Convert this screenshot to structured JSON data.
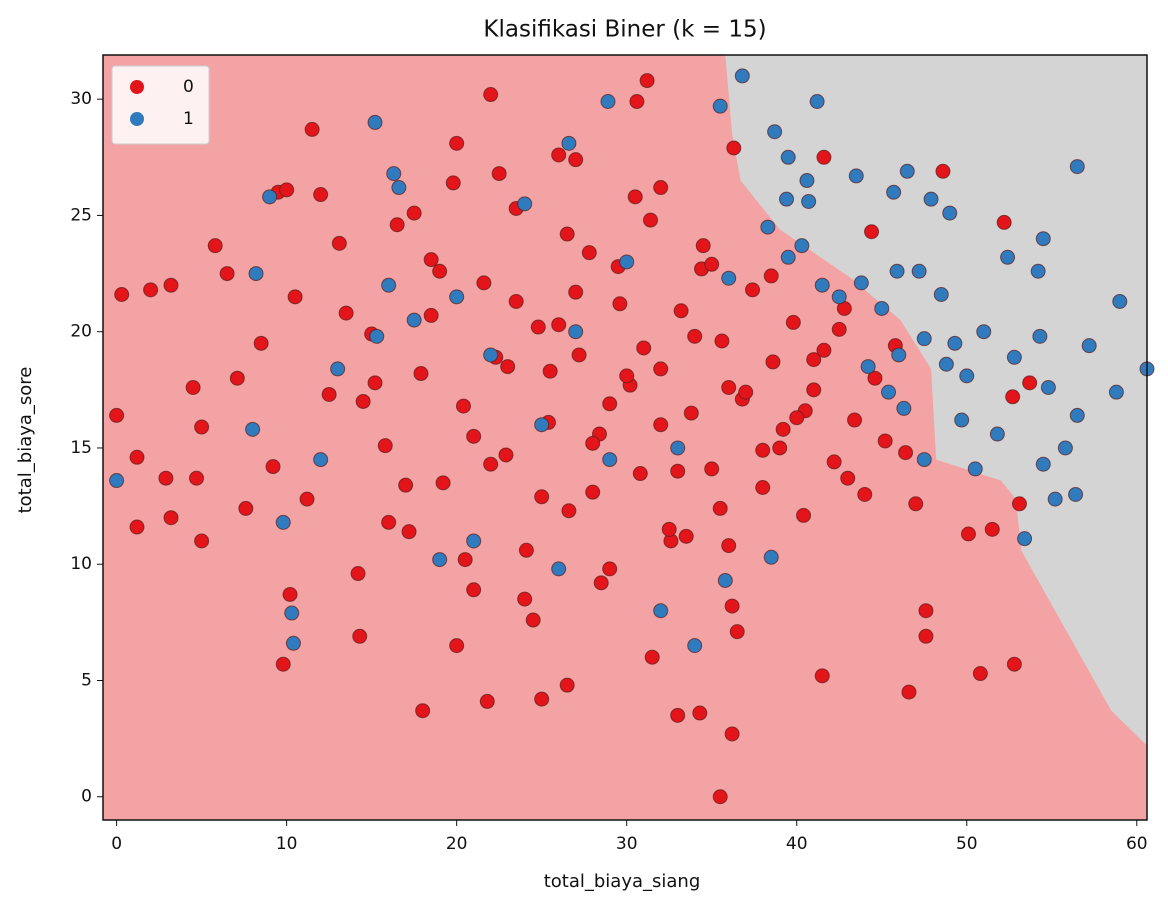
{
  "chart_data": {
    "type": "scatter",
    "title": "Klasifikasi Biner (k = 15)",
    "x_label": "total_biaya_siang",
    "y_label": "total_biaya_sore",
    "xlim": [
      -0.8,
      60.6
    ],
    "ylim": [
      -1.0,
      31.9
    ],
    "xticks": [
      0,
      10,
      20,
      30,
      40,
      50,
      60
    ],
    "yticks": [
      0,
      5,
      10,
      15,
      20,
      25,
      30
    ],
    "legend": "upper left",
    "background_color": "#f3a3a3",
    "regions": [
      {
        "color": "#d4d4d4",
        "x": [
          35.8,
          36.2,
          36.7,
          39.0,
          43.2,
          46.1,
          47.9,
          48.2,
          52.0,
          52.9,
          53.2,
          55.5,
          58.5,
          60.6,
          60.6
        ],
        "y": [
          31.9,
          28.5,
          26.5,
          24.4,
          22.3,
          20.5,
          18.4,
          14.5,
          13.6,
          12.8,
          10.6,
          7.6,
          3.7,
          2.2,
          31.9
        ]
      }
    ],
    "series": [
      {
        "name": "0",
        "color": "#e3151b",
        "x": [
          0,
          0.3,
          2,
          3.2,
          1.2,
          2.9,
          1.2,
          3.2,
          4.5,
          5,
          5.8,
          4.7,
          5,
          6.5,
          7.1,
          7.6,
          9.5,
          10,
          11.5,
          12,
          10.2,
          9.8,
          14.3,
          18,
          21.8,
          22,
          25,
          26.5,
          31.2,
          30.6,
          33,
          34.3,
          35.5,
          36.2,
          41.5,
          46.6,
          50.8,
          52.8,
          48.6,
          52.2,
          53.1,
          52.7,
          53.7,
          51.5,
          41.6,
          44.4,
          50.1,
          47.6,
          47.6,
          36.3,
          8.5,
          9.2,
          10.5,
          11.2,
          12.5,
          13.1,
          14.2,
          15.0,
          15.8,
          16.5,
          17.2,
          17.9,
          18.5,
          19.2,
          19.8,
          20.4,
          21.0,
          21.6,
          22.3,
          22.9,
          23.5,
          24.1,
          24.8,
          25.4,
          26.0,
          26.6,
          27.2,
          27.8,
          28.4,
          29.0,
          29.6,
          30.2,
          30.8,
          31.4,
          32.0,
          32.6,
          33.2,
          33.8,
          34.4,
          35.0,
          35.6,
          36.2,
          36.8,
          37.4,
          38.0,
          38.6,
          39.2,
          39.8,
          40.4,
          41.0,
          41.6,
          42.2,
          42.8,
          43.4,
          44.0,
          44.6,
          45.2,
          45.8,
          46.4,
          47.0,
          13.5,
          15.2,
          17.0,
          19.0,
          21.0,
          23.0,
          25.0,
          27.0,
          29.0,
          31.0,
          33.0,
          35.0,
          37.0,
          39.0,
          41.0,
          43.0,
          16.0,
          18.5,
          20.5,
          22.5,
          24.5,
          26.5,
          28.5,
          30.5,
          32.5,
          34.5,
          36.5,
          38.5,
          40.5,
          42.5,
          14.5,
          17.5,
          20.0,
          23.5,
          26.0,
          28.0,
          30.0,
          32.0,
          34.0,
          36.0,
          38.0,
          40.0,
          20.0,
          24.0,
          28.0,
          32.0,
          36.0,
          22.0,
          27.0,
          31.5,
          35.5,
          25.5,
          29.5,
          33.5
        ],
        "y": [
          16.4,
          21.6,
          21.8,
          22,
          14.6,
          13.7,
          11.6,
          12,
          17.6,
          15.9,
          23.7,
          13.7,
          11,
          22.5,
          18,
          12.4,
          26,
          26.1,
          28.7,
          25.9,
          8.7,
          5.7,
          6.9,
          3.7,
          4.1,
          30.2,
          4.2,
          4.8,
          30.8,
          29.9,
          3.5,
          3.6,
          0,
          2.7,
          5.2,
          4.5,
          5.3,
          5.7,
          26.9,
          24.7,
          12.6,
          17.2,
          17.8,
          11.5,
          27.5,
          24.3,
          11.3,
          8,
          6.9,
          27.9,
          19.5,
          14.2,
          21.5,
          12.8,
          17.3,
          23.8,
          9.6,
          19.9,
          15.1,
          24.6,
          11.4,
          18.2,
          20.7,
          13.5,
          26.4,
          16.8,
          8.9,
          22.1,
          18.9,
          14.7,
          25.3,
          10.6,
          20.2,
          16.1,
          27.6,
          12.3,
          19.0,
          23.4,
          15.6,
          9.8,
          21.2,
          17.7,
          13.9,
          24.8,
          18.4,
          11.0,
          20.9,
          16.5,
          22.7,
          14.1,
          19.6,
          8.2,
          17.1,
          21.8,
          13.3,
          18.7,
          15.8,
          20.4,
          12.1,
          17.5,
          19.2,
          14.4,
          21.0,
          16.2,
          13.0,
          18.0,
          15.3,
          19.4,
          14.8,
          12.6,
          20.8,
          17.8,
          13.4,
          22.6,
          15.5,
          18.5,
          12.9,
          21.7,
          16.9,
          19.3,
          14.0,
          22.9,
          17.4,
          15.0,
          18.8,
          13.7,
          11.8,
          23.1,
          10.2,
          26.8,
          7.6,
          24.2,
          9.2,
          25.8,
          11.5,
          23.7,
          7.1,
          22.4,
          16.6,
          20.1,
          17.0,
          25.1,
          6.5,
          21.3,
          20.3,
          15.2,
          18.1,
          16.0,
          19.8,
          17.6,
          14.9,
          16.3,
          28.1,
          8.5,
          13.1,
          26.2,
          10.8,
          14.3,
          27.4,
          6.0,
          12.4,
          18.3,
          22.8,
          11.2
        ]
      },
      {
        "name": "1",
        "color": "#2f7bbd",
        "x": [
          0,
          9,
          8.2,
          8,
          9.8,
          10.3,
          10.4,
          15.2,
          16.6,
          16.3,
          26.6,
          28.9,
          35.5,
          36.8,
          41.2,
          56.5,
          43.5,
          46.5,
          45.7,
          38.7,
          39.5,
          40.6,
          49,
          47.9,
          52.4,
          54.5,
          54.2,
          59,
          57.2,
          60.6,
          58.8,
          56.5,
          54.8,
          55.8,
          54.5,
          56.4,
          55.2,
          53.4,
          51.8,
          50.5,
          49.7,
          51,
          52.8,
          54.3,
          48.5,
          47.2,
          45.9,
          45,
          46,
          47.5,
          49.3,
          50,
          48.8,
          43.8,
          42.5,
          41.5,
          40.3,
          39.5,
          38.3,
          39.4,
          40.7,
          44.2,
          45.4,
          46.3,
          47.5,
          17.5,
          16,
          20,
          22,
          27,
          25,
          29,
          33,
          21,
          19,
          26,
          32,
          34,
          35.8,
          38.5,
          13,
          12,
          15.3,
          24,
          30,
          36
        ],
        "y": [
          13.6,
          25.8,
          22.5,
          15.8,
          11.8,
          7.9,
          6.6,
          29,
          26.2,
          26.8,
          28.1,
          29.9,
          29.7,
          31,
          29.9,
          27.1,
          26.7,
          26.9,
          26,
          28.6,
          27.5,
          26.5,
          25.1,
          25.7,
          23.2,
          24,
          22.6,
          21.3,
          19.4,
          18.4,
          17.4,
          16.4,
          17.6,
          15,
          14.3,
          13,
          12.8,
          11.1,
          15.6,
          14.1,
          16.2,
          20,
          18.9,
          19.8,
          21.6,
          22.6,
          22.6,
          21,
          19,
          19.7,
          19.5,
          18.1,
          18.6,
          22.1,
          21.5,
          22,
          23.7,
          23.2,
          24.5,
          25.7,
          25.6,
          18.5,
          17.4,
          16.7,
          14.5,
          20.5,
          22,
          21.5,
          19,
          20,
          16,
          14.5,
          15,
          11,
          10.2,
          9.8,
          8,
          6.5,
          9.3,
          10.3,
          18.4,
          14.5,
          19.8,
          25.5,
          23,
          22.3
        ]
      }
    ]
  }
}
